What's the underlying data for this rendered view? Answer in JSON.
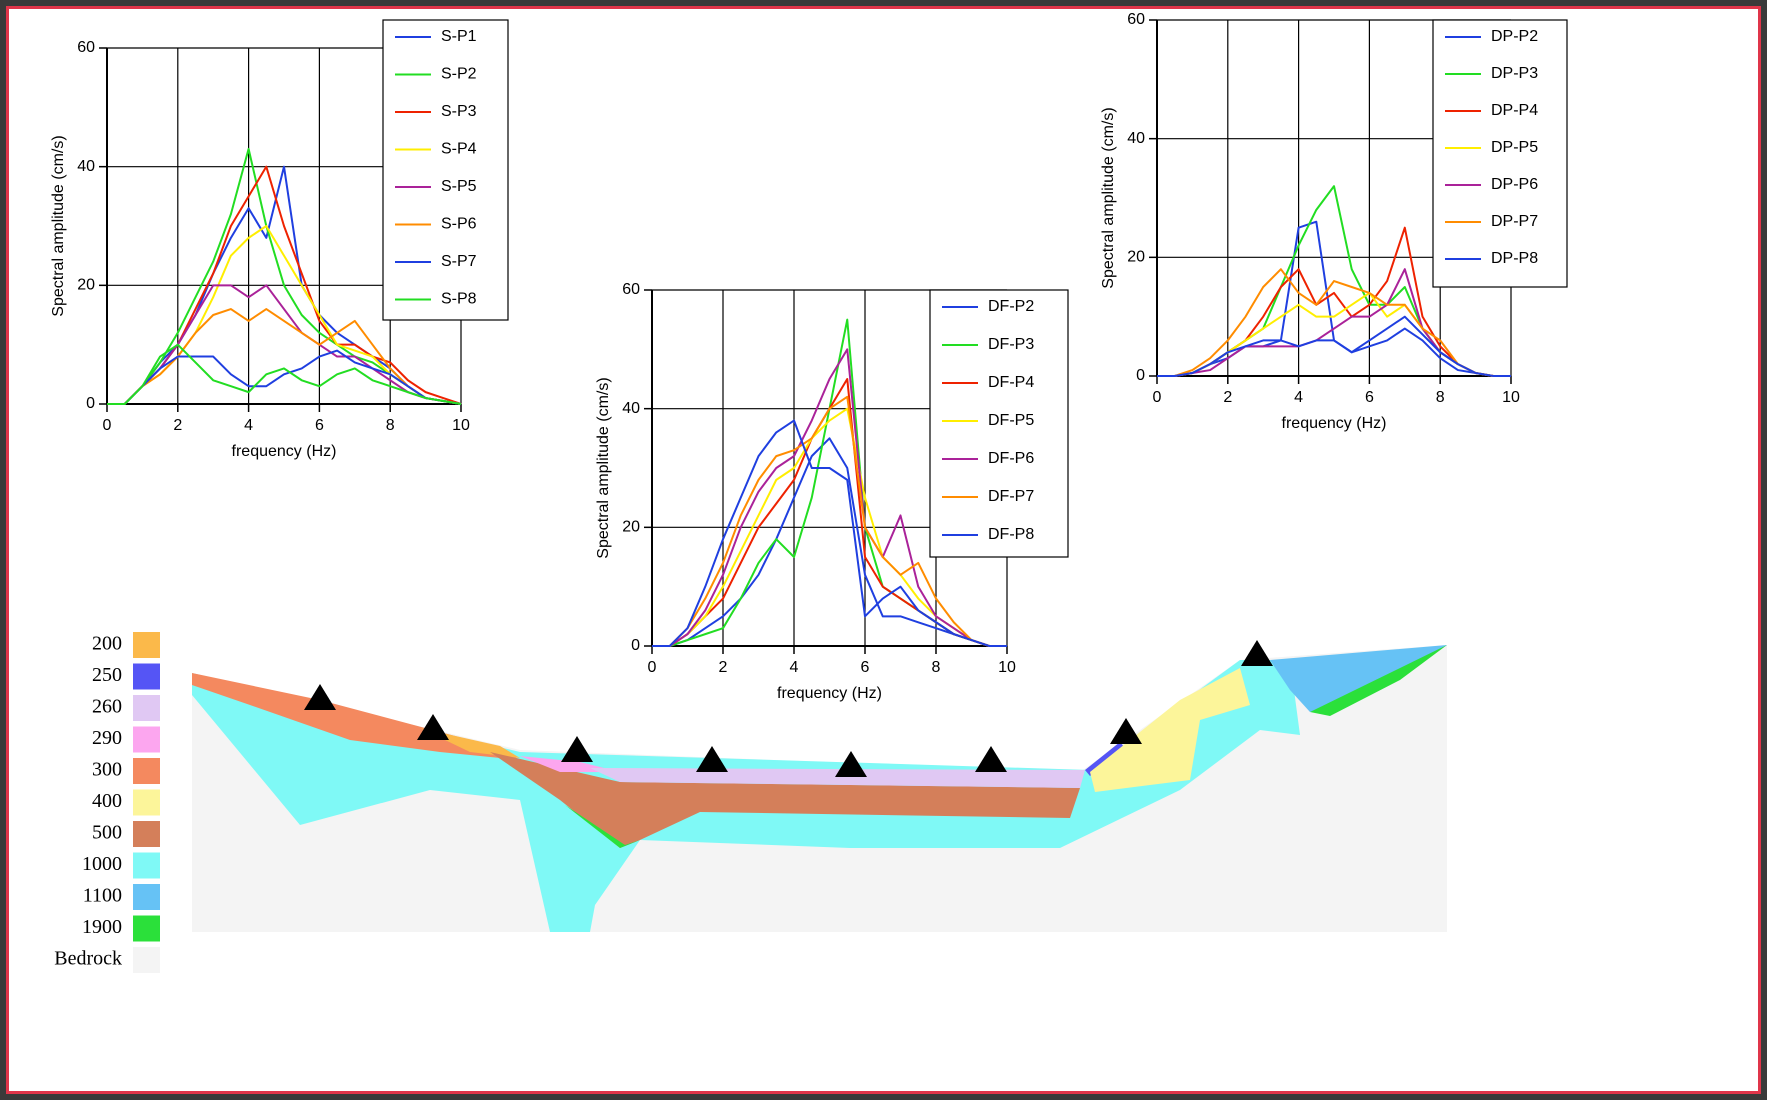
{
  "chart_data": [
    {
      "type": "line",
      "xlabel": "frequency (Hz)",
      "ylabel": "Spectral amplitude (cm/s)",
      "x": [
        0,
        0.5,
        1,
        1.5,
        2,
        2.5,
        3,
        3.5,
        4,
        4.5,
        5,
        5.5,
        6,
        6.5,
        7,
        7.5,
        8,
        8.5,
        9,
        9.5,
        10
      ],
      "xlim": [
        0,
        10
      ],
      "ylim": [
        0,
        60
      ],
      "xticks": [
        0,
        2,
        4,
        6,
        8,
        10
      ],
      "yticks": [
        0,
        20,
        40,
        60
      ],
      "grid": true,
      "series": [
        {
          "name": "S-P1",
          "color": "#1f3fe0",
          "values": [
            0,
            0,
            3,
            7,
            10,
            15,
            22,
            28,
            33,
            28,
            40,
            20,
            15,
            12,
            10,
            8,
            6,
            3,
            1,
            0.5,
            0
          ]
        },
        {
          "name": "S-P2",
          "color": "#22dd22",
          "values": [
            0,
            0,
            3,
            7,
            12,
            18,
            24,
            32,
            43,
            30,
            20,
            15,
            12,
            10,
            8,
            7,
            5,
            3,
            1,
            0.5,
            0
          ]
        },
        {
          "name": "S-P3",
          "color": "#ee2200",
          "values": [
            0,
            0,
            3,
            6,
            10,
            16,
            22,
            30,
            35,
            40,
            30,
            22,
            14,
            10,
            10,
            8,
            7,
            4,
            2,
            1,
            0
          ]
        },
        {
          "name": "S-P4",
          "color": "#ffee00",
          "values": [
            0,
            0,
            3,
            5,
            8,
            12,
            18,
            25,
            28,
            30,
            25,
            20,
            15,
            10,
            9,
            8,
            5,
            3,
            1,
            0.5,
            0
          ]
        },
        {
          "name": "S-P5",
          "color": "#aa2299",
          "values": [
            0,
            0,
            3,
            6,
            10,
            15,
            20,
            20,
            18,
            20,
            16,
            12,
            10,
            8,
            8,
            6,
            4,
            2,
            1,
            0.5,
            0
          ]
        },
        {
          "name": "S-P6",
          "color": "#ff8c00",
          "values": [
            0,
            0,
            3,
            5,
            8,
            12,
            15,
            16,
            14,
            16,
            14,
            12,
            10,
            12,
            14,
            10,
            6,
            3,
            1,
            0.5,
            0
          ]
        },
        {
          "name": "S-P7",
          "color": "#1f3fe0",
          "values": [
            0,
            0,
            3,
            6,
            8,
            8,
            8,
            5,
            3,
            3,
            5,
            6,
            8,
            9,
            7,
            6,
            5,
            3,
            1,
            0.5,
            0
          ]
        },
        {
          "name": "S-P8",
          "color": "#22dd22",
          "values": [
            0,
            0,
            3,
            8,
            10,
            7,
            4,
            3,
            2,
            5,
            6,
            4,
            3,
            5,
            6,
            4,
            3,
            2,
            1,
            0.5,
            0
          ]
        }
      ]
    },
    {
      "type": "line",
      "xlabel": "frequency (Hz)",
      "ylabel": "Spectral amplitude (cm/s)",
      "x": [
        0,
        0.5,
        1,
        1.5,
        2,
        2.5,
        3,
        3.5,
        4,
        4.5,
        5,
        5.5,
        6,
        6.5,
        7,
        7.5,
        8,
        8.5,
        9,
        9.5,
        10
      ],
      "xlim": [
        0,
        10
      ],
      "ylim": [
        0,
        60
      ],
      "xticks": [
        0,
        2,
        4,
        6,
        8,
        10
      ],
      "yticks": [
        0,
        20,
        40,
        60
      ],
      "grid": true,
      "series": [
        {
          "name": "DF-P2",
          "color": "#1f3fe0",
          "values": [
            0,
            0,
            1,
            3,
            5,
            8,
            12,
            18,
            25,
            32,
            35,
            30,
            12,
            5,
            5,
            4,
            3,
            2,
            1,
            0,
            0
          ]
        },
        {
          "name": "DF-P3",
          "color": "#22dd22",
          "values": [
            0,
            0,
            1,
            2,
            3,
            8,
            14,
            18,
            15,
            25,
            40,
            55,
            20,
            10,
            8,
            6,
            4,
            2,
            1,
            0,
            0
          ]
        },
        {
          "name": "DF-P4",
          "color": "#ee2200",
          "values": [
            0,
            0,
            2,
            5,
            8,
            14,
            20,
            24,
            28,
            35,
            40,
            45,
            15,
            10,
            8,
            6,
            4,
            2,
            1,
            0,
            0
          ]
        },
        {
          "name": "DF-P5",
          "color": "#ffee00",
          "values": [
            0,
            0,
            2,
            5,
            10,
            16,
            22,
            28,
            30,
            35,
            38,
            40,
            25,
            15,
            12,
            8,
            5,
            3,
            1,
            0,
            0
          ]
        },
        {
          "name": "DF-P6",
          "color": "#aa2299",
          "values": [
            0,
            0,
            2,
            6,
            12,
            20,
            26,
            30,
            32,
            38,
            45,
            50,
            20,
            15,
            22,
            10,
            5,
            3,
            1,
            0,
            0
          ]
        },
        {
          "name": "DF-P7",
          "color": "#ff8c00",
          "values": [
            0,
            0,
            3,
            8,
            14,
            22,
            28,
            32,
            33,
            35,
            40,
            42,
            20,
            15,
            12,
            14,
            8,
            4,
            1,
            0,
            0
          ]
        },
        {
          "name": "DF-P8",
          "color": "#1f3fe0",
          "values": [
            0,
            0,
            3,
            10,
            18,
            25,
            32,
            36,
            38,
            30,
            30,
            28,
            5,
            8,
            10,
            6,
            4,
            2,
            1,
            0,
            0
          ]
        }
      ]
    },
    {
      "type": "line",
      "xlabel": "frequency (Hz)",
      "ylabel": "Spectral amplitude (cm/s)",
      "x": [
        0,
        0.5,
        1,
        1.5,
        2,
        2.5,
        3,
        3.5,
        4,
        4.5,
        5,
        5.5,
        6,
        6.5,
        7,
        7.5,
        8,
        8.5,
        9,
        9.5,
        10
      ],
      "xlim": [
        0,
        10
      ],
      "ylim": [
        0,
        60
      ],
      "xticks": [
        0,
        2,
        4,
        6,
        8,
        10
      ],
      "yticks": [
        0,
        20,
        40,
        60
      ],
      "grid": true,
      "series": [
        {
          "name": "DP-P2",
          "color": "#1f3fe0",
          "values": [
            0,
            0,
            0.5,
            2,
            3,
            5,
            5,
            6,
            25,
            26,
            6,
            4,
            5,
            6,
            8,
            6,
            3,
            1,
            0.5,
            0,
            0
          ]
        },
        {
          "name": "DP-P3",
          "color": "#22dd22",
          "values": [
            0,
            0,
            0.5,
            2,
            4,
            6,
            8,
            15,
            22,
            28,
            32,
            18,
            12,
            12,
            15,
            8,
            4,
            2,
            0.5,
            0,
            0
          ]
        },
        {
          "name": "DP-P4",
          "color": "#ee2200",
          "values": [
            0,
            0,
            0.5,
            2,
            4,
            6,
            10,
            15,
            18,
            12,
            14,
            10,
            12,
            16,
            25,
            10,
            5,
            2,
            0.5,
            0,
            0
          ]
        },
        {
          "name": "DP-P5",
          "color": "#ffee00",
          "values": [
            0,
            0,
            0.5,
            2,
            4,
            6,
            8,
            10,
            12,
            10,
            10,
            12,
            14,
            10,
            12,
            8,
            4,
            2,
            0.5,
            0,
            0
          ]
        },
        {
          "name": "DP-P6",
          "color": "#aa2299",
          "values": [
            0,
            0,
            0.5,
            1,
            3,
            5,
            5,
            5,
            5,
            6,
            8,
            10,
            10,
            12,
            18,
            8,
            4,
            2,
            0.5,
            0,
            0
          ]
        },
        {
          "name": "DP-P7",
          "color": "#ff8c00",
          "values": [
            0,
            0,
            1,
            3,
            6,
            10,
            15,
            18,
            14,
            12,
            16,
            15,
            14,
            12,
            12,
            8,
            6,
            2,
            0.5,
            0,
            0
          ]
        },
        {
          "name": "DP-P8",
          "color": "#1f3fe0",
          "values": [
            0,
            0,
            0.5,
            2,
            4,
            5,
            6,
            6,
            5,
            6,
            6,
            4,
            6,
            8,
            10,
            7,
            4,
            2,
            0.5,
            0,
            0
          ]
        }
      ]
    }
  ],
  "profile": {
    "legend": [
      {
        "label": "200",
        "color": "#fbb94a"
      },
      {
        "label": "250",
        "color": "#5555f5"
      },
      {
        "label": "260",
        "color": "#e0c8f3"
      },
      {
        "label": "290",
        "color": "#fca6ef"
      },
      {
        "label": "300",
        "color": "#f4895f"
      },
      {
        "label": "400",
        "color": "#fcf59a"
      },
      {
        "label": "500",
        "color": "#d47f5a"
      },
      {
        "label": "1000",
        "color": "#7ff9f6"
      },
      {
        "label": "1100",
        "color": "#66c2f5"
      },
      {
        "label": "1900",
        "color": "#2be03a"
      },
      {
        "label": "Bedrock",
        "color": "#f4f4f4"
      }
    ]
  }
}
